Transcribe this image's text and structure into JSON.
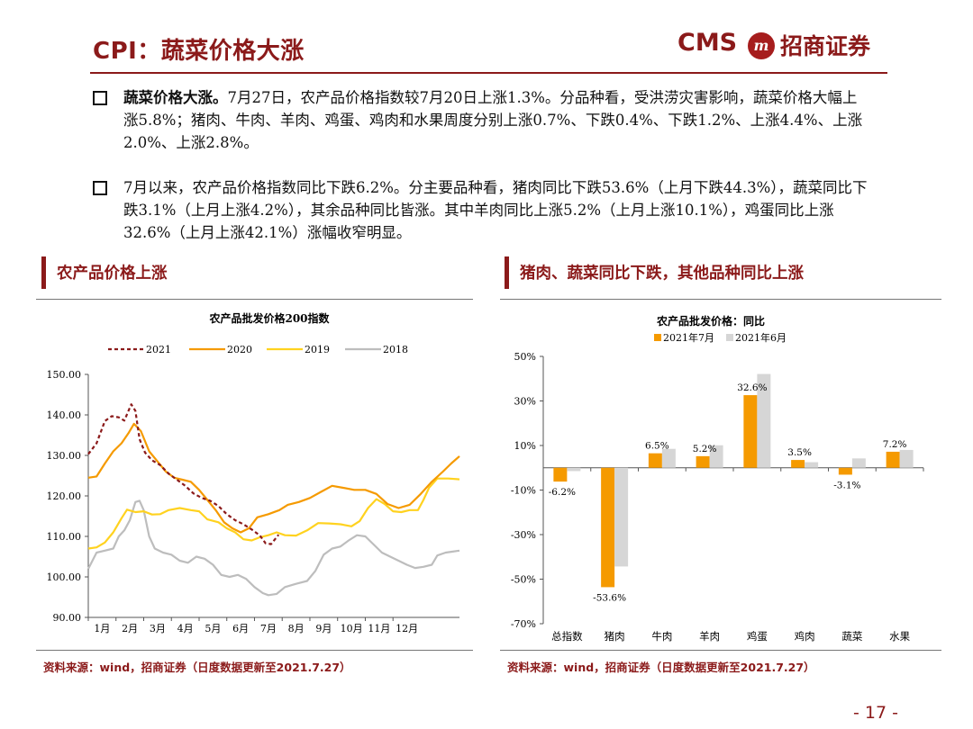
{
  "header": {
    "title": "CPI：蔬菜价格大涨",
    "logo_text": "CMS",
    "logo_cn": "招商证券",
    "logo_emblem": "m"
  },
  "bullets": [
    {
      "lead": "蔬菜价格大涨。",
      "text": "7月27日，农产品价格指数较7月20日上涨1.3%。分品种看，受洪涝灾害影响，蔬菜价格大幅上涨5.8%；猪肉、牛肉、羊肉、鸡蛋、鸡肉和水果周度分别上涨0.7%、下跌0.4%、下跌1.2%、上涨4.4%、上涨2.0%、上涨2.8%。"
    },
    {
      "lead": "",
      "text": "7月以来，农产品价格指数同比下跌6.2%。分主要品种看，猪肉同比下跌53.6%（上月下跌44.3%），蔬菜同比下跌3.1%（上月上涨4.2%），其余品种同比皆涨。其中羊肉同比上涨5.2%（上月上涨10.1%），鸡蛋同比上涨32.6%（上月上涨42.1%）涨幅收窄明显。"
    }
  ],
  "left_panel": {
    "section_title": "农产品价格上涨",
    "source": "资料来源：wind，招商证券（日度数据更新至2021.7.27）"
  },
  "right_panel": {
    "section_title": "猪肉、蔬菜同比下跌，其他品种同比上涨",
    "source": "资料来源：wind，招商证券（日度数据更新至2021.7.27）"
  },
  "page_number": "- 17 -",
  "colors": {
    "brand": "#8b1a1a",
    "s2021": "#8b1a1a",
    "s2020": "#f59a00",
    "s2019": "#ffd21f",
    "s2018": "#bdbdbd",
    "bar_jul": "#f59a00",
    "bar_jun": "#d6d6d6"
  },
  "chart_data": [
    {
      "type": "line",
      "title": "农产品批发价格200指数",
      "x_ticks": [
        "1月",
        "2月",
        "3月",
        "4月",
        "5月",
        "6月",
        "7月",
        "8月",
        "9月",
        "10月",
        "11月",
        "12月"
      ],
      "ylim": [
        90,
        150
      ],
      "y_ticks": [
        "150.00",
        "140.00",
        "130.00",
        "120.00",
        "110.00",
        "100.00",
        "90.00"
      ],
      "x_unit": "month",
      "series": [
        {
          "name": "2021",
          "style": "dashed",
          "points": [
            [
              0.0,
              130.3
            ],
            [
              0.3,
              133
            ],
            [
              0.6,
              138.5
            ],
            [
              0.85,
              139.7
            ],
            [
              1.1,
              139.4
            ],
            [
              1.3,
              138.6
            ],
            [
              1.45,
              141
            ],
            [
              1.55,
              142.6
            ],
            [
              1.7,
              141
            ],
            [
              1.85,
              134
            ],
            [
              2.05,
              130.7
            ],
            [
              2.3,
              128.8
            ],
            [
              2.6,
              127.6
            ],
            [
              2.9,
              125.5
            ],
            [
              3.2,
              124
            ],
            [
              3.5,
              122.5
            ],
            [
              3.8,
              120.6
            ],
            [
              4.1,
              119.5
            ],
            [
              4.4,
              118.8
            ],
            [
              4.7,
              117.5
            ],
            [
              5.0,
              115.5
            ],
            [
              5.3,
              114
            ],
            [
              5.6,
              113
            ],
            [
              5.9,
              111.7
            ],
            [
              6.2,
              110.2
            ],
            [
              6.4,
              108.3
            ],
            [
              6.6,
              108.1
            ],
            [
              6.87,
              110.4
            ]
          ]
        },
        {
          "name": "2020",
          "style": "solid",
          "points": [
            [
              0.0,
              124.5
            ],
            [
              0.3,
              124.8
            ],
            [
              0.6,
              128
            ],
            [
              0.9,
              131
            ],
            [
              1.2,
              133
            ],
            [
              1.45,
              135.5
            ],
            [
              1.65,
              137.8
            ],
            [
              1.9,
              136
            ],
            [
              2.2,
              131
            ],
            [
              2.5,
              128.5
            ],
            [
              2.8,
              126
            ],
            [
              3.1,
              124.5
            ],
            [
              3.4,
              124
            ],
            [
              3.7,
              123.5
            ],
            [
              4.0,
              121.5
            ],
            [
              4.3,
              119
            ],
            [
              4.6,
              116.5
            ],
            [
              4.9,
              113.5
            ],
            [
              5.2,
              112
            ],
            [
              5.5,
              111
            ],
            [
              5.8,
              112
            ],
            [
              6.1,
              114.7
            ],
            [
              6.5,
              115.5
            ],
            [
              6.9,
              116.5
            ],
            [
              7.2,
              117.8
            ],
            [
              7.6,
              118.5
            ],
            [
              8.0,
              119.5
            ],
            [
              8.4,
              121
            ],
            [
              8.8,
              122.5
            ],
            [
              9.2,
              122
            ],
            [
              9.6,
              121.5
            ],
            [
              10.0,
              121.5
            ],
            [
              10.4,
              120.5
            ],
            [
              10.8,
              118
            ],
            [
              11.2,
              117
            ],
            [
              11.6,
              117.8
            ],
            [
              12.0,
              120.5
            ],
            [
              12.4,
              123.5
            ],
            [
              12.8,
              126
            ],
            [
              13.1,
              128
            ],
            [
              13.4,
              129.8
            ]
          ]
        },
        {
          "name": "2019",
          "style": "solid",
          "points": [
            [
              0.0,
              107
            ],
            [
              0.3,
              107.3
            ],
            [
              0.6,
              108.5
            ],
            [
              0.9,
              111
            ],
            [
              1.2,
              114.5
            ],
            [
              1.4,
              116.6
            ],
            [
              1.7,
              116
            ],
            [
              2.0,
              116.2
            ],
            [
              2.3,
              115.4
            ],
            [
              2.6,
              115.5
            ],
            [
              2.9,
              116.5
            ],
            [
              3.3,
              117
            ],
            [
              3.7,
              116.5
            ],
            [
              4.0,
              116.2
            ],
            [
              4.3,
              114.2
            ],
            [
              4.7,
              113.5
            ],
            [
              5.0,
              112
            ],
            [
              5.3,
              111
            ],
            [
              5.6,
              109.3
            ],
            [
              5.9,
              109
            ],
            [
              6.2,
              109.8
            ],
            [
              6.5,
              110.3
            ],
            [
              6.8,
              111
            ],
            [
              7.1,
              110.3
            ],
            [
              7.5,
              110.2
            ],
            [
              7.9,
              111.5
            ],
            [
              8.3,
              113.3
            ],
            [
              8.7,
              113.2
            ],
            [
              9.1,
              113
            ],
            [
              9.5,
              112.5
            ],
            [
              9.8,
              113.8
            ],
            [
              10.1,
              117
            ],
            [
              10.4,
              119.2
            ],
            [
              10.7,
              118
            ],
            [
              11.0,
              116.2
            ],
            [
              11.3,
              116
            ],
            [
              11.6,
              116.5
            ],
            [
              11.9,
              116.5
            ],
            [
              12.1,
              119
            ],
            [
              12.3,
              122
            ],
            [
              12.6,
              124.3
            ],
            [
              13.0,
              124.3
            ],
            [
              13.4,
              124.1
            ]
          ]
        },
        {
          "name": "2018",
          "style": "solid",
          "points": [
            [
              0.0,
              102
            ],
            [
              0.3,
              106
            ],
            [
              0.6,
              106.5
            ],
            [
              0.9,
              107
            ],
            [
              1.1,
              110
            ],
            [
              1.3,
              111.5
            ],
            [
              1.5,
              114
            ],
            [
              1.7,
              118.5
            ],
            [
              1.85,
              118.8
            ],
            [
              2.0,
              116.5
            ],
            [
              2.2,
              110
            ],
            [
              2.4,
              107
            ],
            [
              2.7,
              106
            ],
            [
              3.0,
              105.5
            ],
            [
              3.3,
              104
            ],
            [
              3.6,
              103.5
            ],
            [
              3.9,
              105
            ],
            [
              4.2,
              104.5
            ],
            [
              4.5,
              103
            ],
            [
              4.8,
              100.5
            ],
            [
              5.1,
              100
            ],
            [
              5.4,
              100.5
            ],
            [
              5.7,
              99.5
            ],
            [
              6.0,
              97.5
            ],
            [
              6.3,
              96
            ],
            [
              6.5,
              95.5
            ],
            [
              6.8,
              95.8
            ],
            [
              7.1,
              97.5
            ],
            [
              7.5,
              98.3
            ],
            [
              7.9,
              99
            ],
            [
              8.2,
              101.5
            ],
            [
              8.5,
              105.5
            ],
            [
              8.8,
              107
            ],
            [
              9.1,
              107.5
            ],
            [
              9.4,
              109
            ],
            [
              9.7,
              110.3
            ],
            [
              10.0,
              110
            ],
            [
              10.3,
              108
            ],
            [
              10.6,
              106
            ],
            [
              10.9,
              105
            ],
            [
              11.2,
              104
            ],
            [
              11.5,
              103
            ],
            [
              11.8,
              102.2
            ],
            [
              12.1,
              102.5
            ],
            [
              12.4,
              103
            ],
            [
              12.6,
              105.3
            ],
            [
              12.9,
              106
            ],
            [
              13.1,
              106.2
            ],
            [
              13.4,
              106.5
            ]
          ]
        }
      ]
    },
    {
      "type": "bar",
      "title": "农产品批发价格：同比",
      "categories": [
        "总指数",
        "猪肉",
        "牛肉",
        "羊肉",
        "鸡蛋",
        "鸡肉",
        "蔬菜",
        "水果"
      ],
      "ylim": [
        -70,
        50
      ],
      "y_ticks": [
        "50%",
        "30%",
        "10%",
        "-10%",
        "-30%",
        "-50%",
        "-70%"
      ],
      "series": [
        {
          "name": "2021年7月",
          "values": [
            -6.2,
            -53.6,
            6.5,
            5.2,
            32.6,
            3.5,
            -3.1,
            7.2
          ],
          "labels": [
            "-6.2%",
            "-53.6%",
            "6.5%",
            "5.2%",
            "32.6%",
            "3.5%",
            "-3.1%",
            "7.2%"
          ]
        },
        {
          "name": "2021年6月",
          "values": [
            -1.5,
            -44.3,
            8.5,
            10.1,
            42.1,
            2.5,
            4.2,
            8.0
          ]
        }
      ]
    }
  ]
}
